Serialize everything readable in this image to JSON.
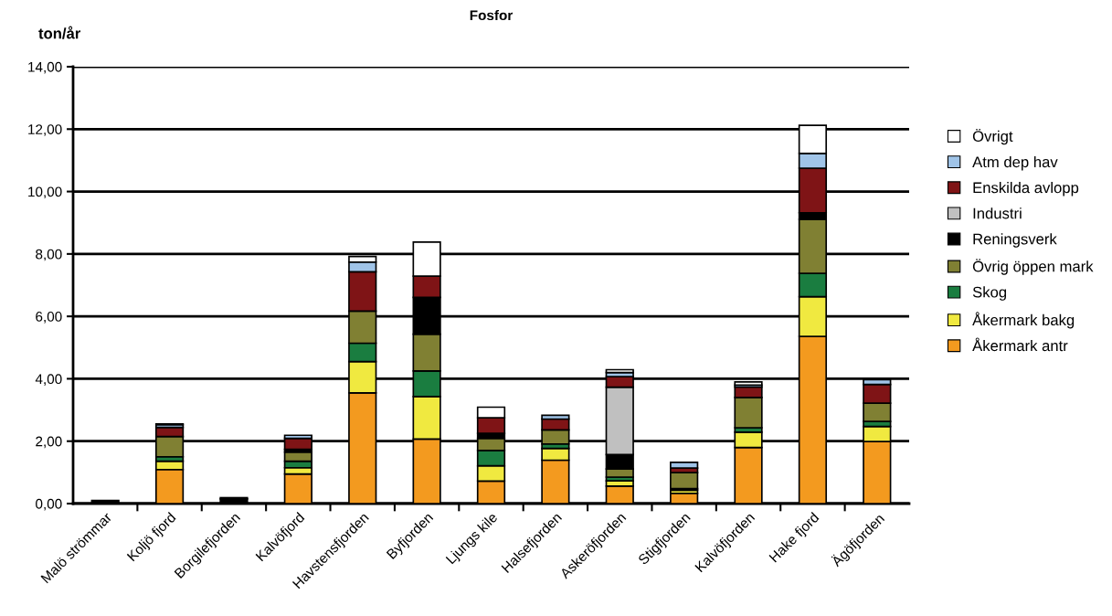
{
  "chart_data": {
    "type": "bar",
    "stacked": true,
    "title": "Fosfor",
    "ylabel": "ton/år",
    "categories": [
      "Malö strömmar",
      "Koljö fjord",
      "Borgilefjorden",
      "Kalvöfjord",
      "Havstensfjorden",
      "Byfjorden",
      "Ljungs kile",
      "Halsefjorden",
      "Askeröfjorden",
      "Stigfjorden",
      "Kalvöfjorden",
      "Hake fjord",
      "Ägöfjorden"
    ],
    "series": [
      {
        "name": "Åkermark antr",
        "color": "#f39a1f",
        "values": [
          null,
          1.09,
          null,
          0.95,
          3.55,
          2.07,
          0.72,
          1.39,
          0.56,
          0.33,
          1.8,
          5.36,
          1.99
        ]
      },
      {
        "name": "Åkermark bakg",
        "color": "#f0e940",
        "values": [
          null,
          0.27,
          null,
          0.2,
          1.0,
          1.36,
          0.49,
          0.38,
          0.17,
          0.1,
          0.49,
          1.27,
          0.48
        ]
      },
      {
        "name": "Skog",
        "color": "#1a7d40",
        "values": [
          null,
          0.14,
          null,
          0.21,
          0.59,
          0.82,
          0.49,
          0.14,
          0.12,
          0.05,
          0.14,
          0.75,
          0.16
        ]
      },
      {
        "name": "Övrig öppen mark",
        "color": "#808033",
        "values": [
          null,
          0.65,
          null,
          0.29,
          1.03,
          1.18,
          0.39,
          0.45,
          0.26,
          0.51,
          0.97,
          1.73,
          0.59
        ]
      },
      {
        "name": "Reningsverk",
        "color": "#000000",
        "values": [
          0.1,
          null,
          0.15,
          0.09,
          null,
          1.18,
          0.16,
          null,
          0.46,
          null,
          null,
          0.21,
          null
        ]
      },
      {
        "name": "Industri",
        "color": "#c0c0c0",
        "values": [
          null,
          null,
          null,
          null,
          null,
          null,
          null,
          null,
          2.16,
          null,
          null,
          null,
          null
        ]
      },
      {
        "name": "Enskilda avlopp",
        "color": "#7f1416",
        "values": [
          null,
          0.29,
          null,
          0.35,
          1.26,
          0.68,
          0.5,
          0.35,
          0.34,
          0.15,
          0.34,
          1.43,
          0.6
        ]
      },
      {
        "name": "Atm dep hav",
        "color": "#a0c4e8",
        "values": [
          null,
          0.09,
          null,
          0.1,
          0.31,
          null,
          null,
          0.12,
          0.13,
          0.18,
          0.06,
          0.47,
          0.15
        ]
      },
      {
        "name": "Övrigt",
        "color": "#ffffff",
        "values": [
          null,
          0.02,
          0.04,
          null,
          0.18,
          1.09,
          0.34,
          null,
          0.09,
          null,
          0.1,
          0.9,
          null
        ]
      }
    ],
    "ylim": [
      0,
      14
    ],
    "yticks": [
      {
        "value": 0,
        "label": "0,00"
      },
      {
        "value": 2,
        "label": "2,00"
      },
      {
        "value": 4,
        "label": "4,00"
      },
      {
        "value": 6,
        "label": "6,00"
      },
      {
        "value": 8,
        "label": "8,00"
      },
      {
        "value": 10,
        "label": "10,00"
      },
      {
        "value": 12,
        "label": "12,00"
      },
      {
        "value": 14,
        "label": "14,00"
      }
    ],
    "grid": "y",
    "legend": "right"
  }
}
